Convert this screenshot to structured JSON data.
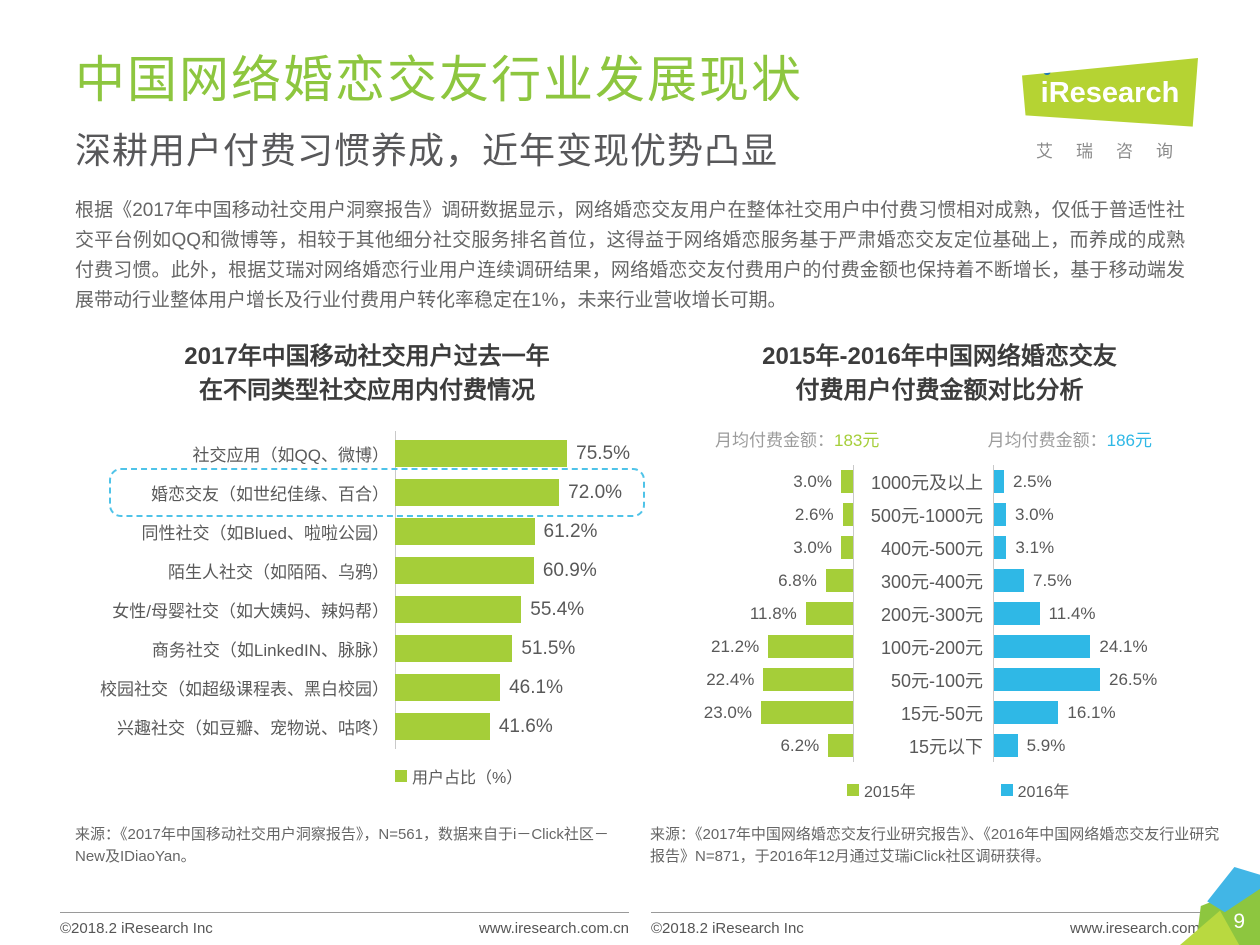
{
  "header": {
    "title": "中国网络婚恋交友行业发展现状",
    "subtitle": "深耕用户付费习惯养成，近年变现优势凸显"
  },
  "logo": {
    "brand": "iResearch",
    "brand_cn": "艾瑞咨询"
  },
  "intro": "根据《2017年中国移动社交用户洞察报告》调研数据显示，网络婚恋交友用户在整体社交用户中付费习惯相对成熟，仅低于普适性社交平台例如QQ和微博等，相较于其他细分社交服务排名首位，这得益于网络婚恋服务基于严肃婚恋交友定位基础上，而养成的成熟付费习惯。此外，根据艾瑞对网络婚恋行业用户连续调研结果，网络婚恋交友付费用户的付费金额也保持着不断增长，基于移动端发展带动行业整体用户增长及行业付费用户转化率稳定在1%，未来行业营收增长可期。",
  "left_chart": {
    "title_line1": "2017年中国移动社交用户过去一年",
    "title_line2": "在不同类型社交应用内付费情况",
    "legend": "用户占比（%）",
    "rows": [
      {
        "label": "社交应用（如QQ、微博）",
        "value": 75.5,
        "display": "75.5%"
      },
      {
        "label": "婚恋交友（如世纪佳缘、百合）",
        "value": 72.0,
        "display": "72.0%",
        "highlighted": true
      },
      {
        "label": "同性社交（如Blued、啦啦公园）",
        "value": 61.2,
        "display": "61.2%"
      },
      {
        "label": "陌生人社交（如陌陌、乌鸦）",
        "value": 60.9,
        "display": "60.9%"
      },
      {
        "label": "女性/母婴社交（如大姨妈、辣妈帮）",
        "value": 55.4,
        "display": "55.4%"
      },
      {
        "label": "商务社交（如LinkedIN、脉脉）",
        "value": 51.5,
        "display": "51.5%"
      },
      {
        "label": "校园社交（如超级课程表、黑白校园）",
        "value": 46.1,
        "display": "46.1%"
      },
      {
        "label": "兴趣社交（如豆瓣、宠物说、咕咚）",
        "value": 41.6,
        "display": "41.6%"
      }
    ]
  },
  "right_chart": {
    "title_line1": "2015年-2016年中国网络婚恋交友",
    "title_line2": "付费用户付费金额对比分析",
    "avg_label": "月均付费金额：",
    "avg_2015_value": "183元",
    "avg_2016_value": "186元",
    "legend_2015": "2015年",
    "legend_2016": "2016年",
    "rows": [
      {
        "category": "1000元及以上",
        "v2015": 3.0,
        "v2016": 2.5,
        "d2015": "3.0%",
        "d2016": "2.5%"
      },
      {
        "category": "500元-1000元",
        "v2015": 2.6,
        "v2016": 3.0,
        "d2015": "2.6%",
        "d2016": "3.0%"
      },
      {
        "category": "400元-500元",
        "v2015": 3.0,
        "v2016": 3.1,
        "d2015": "3.0%",
        "d2016": "3.1%"
      },
      {
        "category": "300元-400元",
        "v2015": 6.8,
        "v2016": 7.5,
        "d2015": "6.8%",
        "d2016": "7.5%"
      },
      {
        "category": "200元-300元",
        "v2015": 11.8,
        "v2016": 11.4,
        "d2015": "11.8%",
        "d2016": "11.4%"
      },
      {
        "category": "100元-200元",
        "v2015": 21.2,
        "v2016": 24.1,
        "d2015": "21.2%",
        "d2016": "24.1%"
      },
      {
        "category": "50元-100元",
        "v2015": 22.4,
        "v2016": 26.5,
        "d2015": "22.4%",
        "d2016": "26.5%"
      },
      {
        "category": "15元-50元",
        "v2015": 23.0,
        "v2016": 16.1,
        "d2015": "23.0%",
        "d2016": "16.1%"
      },
      {
        "category": "15元以下",
        "v2015": 6.2,
        "v2016": 5.9,
        "d2015": "6.2%",
        "d2016": "5.9%"
      }
    ]
  },
  "sources": {
    "left": "来源：《2017年中国移动社交用户洞察报告》，N=561，数据来自于i－Click社区－New及IDiaoYan。",
    "right": "来源：《2017年中国网络婚恋交友行业研究报告》、《2016年中国网络婚恋交友行业研究报告》N=871，于2016年12月通过艾瑞iClick社区调研获得。"
  },
  "footer": {
    "copyright": "©2018.2 iResearch Inc",
    "url": "www.iresearch.com.cn",
    "page_number": "9"
  },
  "colors": {
    "brand_green": "#8dc63f",
    "bar_green": "#a5ce39",
    "bar_cyan": "#2fb8e6",
    "highlight_dash": "#4fc3e8"
  },
  "chart_data": [
    {
      "type": "bar",
      "orientation": "horizontal",
      "title": "2017年中国移动社交用户过去一年在不同类型社交应用内付费情况",
      "categories": [
        "社交应用（如QQ、微博）",
        "婚恋交友（如世纪佳缘、百合）",
        "同性社交（如Blued、啦啦公园）",
        "陌生人社交（如陌陌、乌鸦）",
        "女性/母婴社交（如大姨妈、辣妈帮）",
        "商务社交（如LinkedIN、脉脉）",
        "校园社交（如超级课程表、黑白校园）",
        "兴趣社交（如豆瓣、宠物说、咕咚）"
      ],
      "values": [
        75.5,
        72.0,
        61.2,
        60.9,
        55.4,
        51.5,
        46.1,
        41.6
      ],
      "unit": "%",
      "legend": [
        "用户占比（%）"
      ],
      "legend_position": "bottom",
      "xlim": [
        0,
        80
      ],
      "grid": false,
      "highlighted_category": "婚恋交友（如世纪佳缘、百合）"
    },
    {
      "type": "bar",
      "subtype": "butterfly",
      "title": "2015年-2016年中国网络婚恋交友付费用户付费金额对比分析",
      "categories": [
        "1000元及以上",
        "500元-1000元",
        "400元-500元",
        "300元-400元",
        "200元-300元",
        "100元-200元",
        "50元-100元",
        "15元-50元",
        "15元以下"
      ],
      "series": [
        {
          "name": "2015年",
          "values": [
            3.0,
            2.6,
            3.0,
            6.8,
            11.8,
            21.2,
            22.4,
            23.0,
            6.2
          ]
        },
        {
          "name": "2016年",
          "values": [
            2.5,
            3.0,
            3.1,
            7.5,
            11.4,
            24.1,
            26.5,
            16.1,
            5.9
          ]
        }
      ],
      "unit": "%",
      "annotations": [
        "月均付费金额：183元",
        "月均付费金额：186元"
      ],
      "legend_position": "bottom",
      "grid": false
    }
  ]
}
